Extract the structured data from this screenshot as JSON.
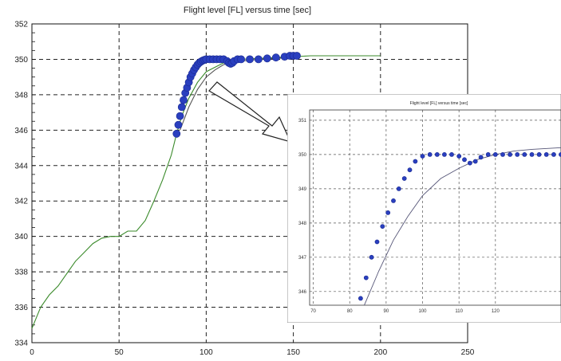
{
  "chart_data": [
    {
      "type": "line",
      "title": "Flight level [FL] versus time [sec]",
      "xlabel": "",
      "ylabel": "",
      "xlim": [
        0,
        250
      ],
      "ylim": [
        334,
        352
      ],
      "xticks": [
        "0",
        "50",
        "100",
        "150",
        "200",
        "250"
      ],
      "yticks": [
        "334",
        "336",
        "338",
        "340",
        "342",
        "344",
        "346",
        "348",
        "350",
        "352"
      ],
      "grid": true,
      "colors": {
        "green_line": "#3a8a2a",
        "gray_line": "#555555",
        "blue_markers": "#2a3fbf"
      },
      "series": [
        {
          "style": "thin green line",
          "x": [
            0,
            5,
            10,
            15,
            20,
            25,
            30,
            35,
            40,
            45,
            50,
            55,
            60,
            65,
            70,
            75,
            80,
            83,
            86,
            90,
            95,
            100,
            110,
            120,
            140,
            160,
            180,
            200
          ],
          "y": [
            334.8,
            336.0,
            336.7,
            337.2,
            337.9,
            338.6,
            339.1,
            339.6,
            339.9,
            340.0,
            340.0,
            340.3,
            340.3,
            340.9,
            342.0,
            343.2,
            344.6,
            345.8,
            346.8,
            347.8,
            348.7,
            349.3,
            349.8,
            350.0,
            350.1,
            350.2,
            350.2,
            350.2
          ]
        },
        {
          "style": "thin gray line",
          "x": [
            85,
            90,
            95,
            100,
            105,
            110,
            120,
            130,
            140,
            150
          ],
          "y": [
            346.0,
            347.3,
            348.3,
            349.0,
            349.4,
            349.7,
            349.9,
            350.0,
            350.05,
            350.1
          ]
        },
        {
          "style": "blue circle markers",
          "x": [
            83,
            84,
            85,
            86,
            87,
            88,
            89,
            90,
            91,
            92,
            93,
            94,
            95,
            96,
            97,
            98,
            99,
            100,
            102,
            104,
            106,
            108,
            110,
            112,
            113,
            114,
            115,
            116,
            118,
            120,
            125,
            130,
            135,
            140,
            145,
            148,
            150,
            152
          ],
          "y": [
            345.8,
            346.3,
            346.8,
            347.3,
            347.7,
            348.1,
            348.4,
            348.7,
            349.0,
            349.2,
            349.4,
            349.55,
            349.7,
            349.8,
            349.87,
            349.93,
            349.97,
            350.0,
            350.0,
            350.0,
            350.0,
            350.0,
            350.0,
            349.9,
            349.8,
            349.75,
            349.8,
            349.9,
            350.0,
            350.0,
            350.0,
            350.0,
            350.05,
            350.1,
            350.15,
            350.2,
            350.2,
            350.2
          ]
        }
      ]
    },
    {
      "type": "line",
      "title": "Flight level [FL] versus time [sec]",
      "xlabel": "",
      "ylabel": "",
      "xlim": [
        69,
        138
      ],
      "ylim": [
        345.6,
        351.3
      ],
      "xticks": [
        "70",
        "80",
        "90",
        "100",
        "110",
        "120"
      ],
      "yticks": [
        "346",
        "347",
        "348",
        "349",
        "350",
        "351"
      ],
      "grid": true,
      "colors": {
        "gray_line": "#555577",
        "blue_markers": "#2a3fbf"
      },
      "series": [
        {
          "style": "thin gray line",
          "x": [
            84,
            88,
            92,
            96,
            100,
            105,
            110,
            115,
            120,
            125,
            130,
            138
          ],
          "y": [
            345.6,
            346.6,
            347.5,
            348.2,
            348.8,
            349.3,
            349.6,
            349.85,
            350.0,
            350.1,
            350.15,
            350.2
          ]
        },
        {
          "style": "blue circle markers",
          "x": [
            83,
            84.5,
            86,
            87.5,
            89,
            90.5,
            92,
            93.5,
            95,
            96.5,
            98,
            100,
            102,
            104,
            106,
            108,
            110,
            111.5,
            113,
            114.5,
            116,
            118,
            120,
            122,
            124,
            126,
            128,
            130,
            132,
            134,
            136,
            138
          ],
          "y": [
            345.8,
            346.4,
            347.0,
            347.45,
            347.9,
            348.3,
            348.65,
            349.0,
            349.3,
            349.55,
            349.8,
            349.95,
            350.0,
            350.0,
            350.0,
            350.0,
            349.95,
            349.85,
            349.75,
            349.8,
            349.92,
            350.0,
            350.0,
            350.0,
            350.0,
            350.0,
            350.0,
            350.0,
            350.0,
            350.0,
            350.0,
            350.0
          ]
        }
      ]
    }
  ]
}
